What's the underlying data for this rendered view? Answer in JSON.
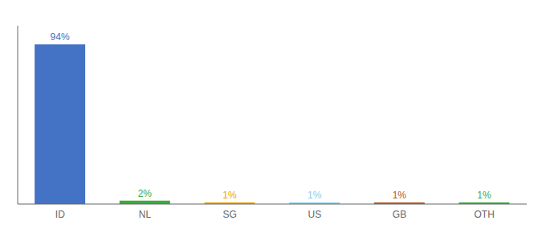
{
  "chart_data": {
    "type": "bar",
    "categories": [
      "ID",
      "NL",
      "SG",
      "US",
      "GB",
      "OTH"
    ],
    "values": [
      94,
      2,
      1,
      1,
      1,
      1
    ],
    "value_labels": [
      "94%",
      "2%",
      "1%",
      "1%",
      "1%",
      "1%"
    ],
    "colors": [
      "#4472C4",
      "#3DAA3D",
      "#F0A500",
      "#87CEEB",
      "#B05A2A",
      "#3DAA3D"
    ],
    "ylim": [
      0,
      105
    ],
    "tick_labels": "x"
  }
}
